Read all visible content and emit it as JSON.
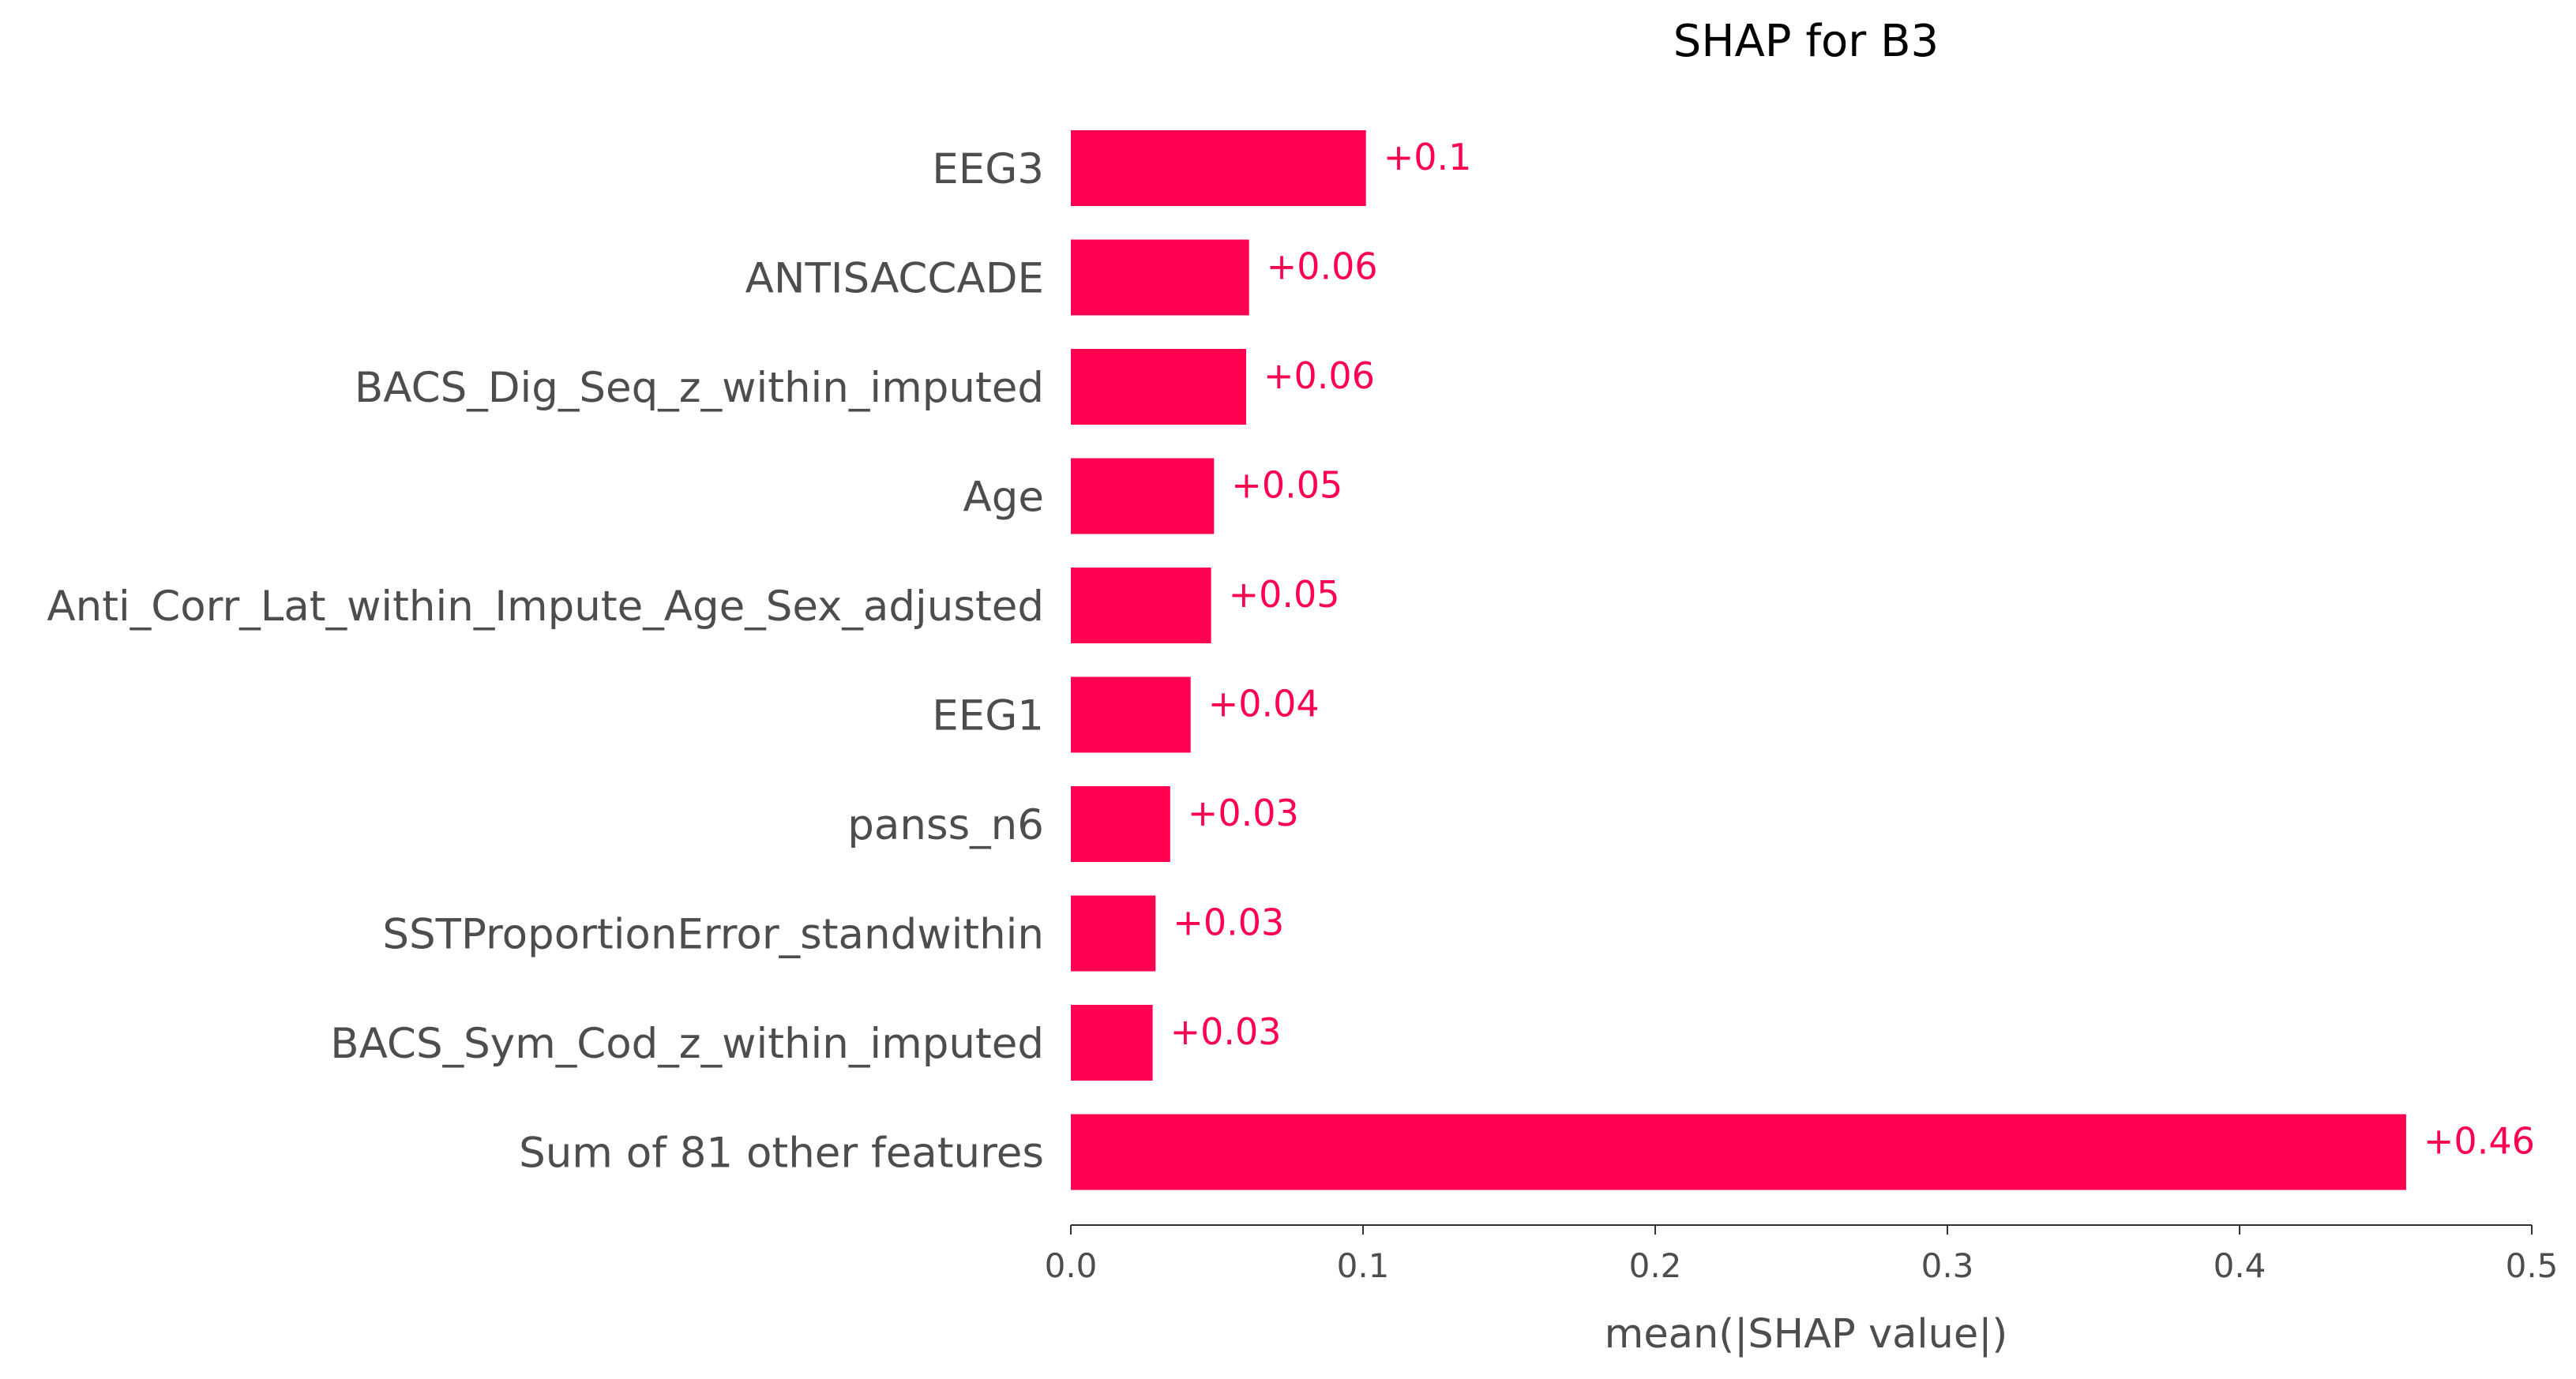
{
  "chart_data": {
    "type": "bar",
    "orientation": "horizontal",
    "title": "SHAP for B3",
    "xlabel": "mean(|SHAP value|)",
    "ylabel": "",
    "xlim": [
      0,
      0.5
    ],
    "xticks": [
      {
        "value": 0.0,
        "label": "0.0"
      },
      {
        "value": 0.1,
        "label": "0.1"
      },
      {
        "value": 0.2,
        "label": "0.2"
      },
      {
        "value": 0.3,
        "label": "0.3"
      },
      {
        "value": 0.4,
        "label": "0.4"
      },
      {
        "value": 0.5,
        "label": "0.5"
      }
    ],
    "bar_color": "#ff0051",
    "label_color": "#ff0051",
    "grid": false,
    "bars": [
      {
        "feature": "EEG3",
        "value": 0.101,
        "label": "+0.1"
      },
      {
        "feature": "ANTISACCADE",
        "value": 0.061,
        "label": "+0.06"
      },
      {
        "feature": "BACS_Dig_Seq_z_within_imputed",
        "value": 0.06,
        "label": "+0.06"
      },
      {
        "feature": "Age",
        "value": 0.049,
        "label": "+0.05"
      },
      {
        "feature": "Anti_Corr_Lat_within_Impute_Age_Sex_adjusted",
        "value": 0.048,
        "label": "+0.05"
      },
      {
        "feature": "EEG1",
        "value": 0.041,
        "label": "+0.04"
      },
      {
        "feature": "panss_n6",
        "value": 0.034,
        "label": "+0.03"
      },
      {
        "feature": "SSTProportionError_standwithin",
        "value": 0.029,
        "label": "+0.03"
      },
      {
        "feature": "BACS_Sym_Cod_z_within_imputed",
        "value": 0.028,
        "label": "+0.03"
      },
      {
        "feature": "Sum of 81 other features",
        "value": 0.457,
        "label": "+0.46"
      }
    ]
  }
}
